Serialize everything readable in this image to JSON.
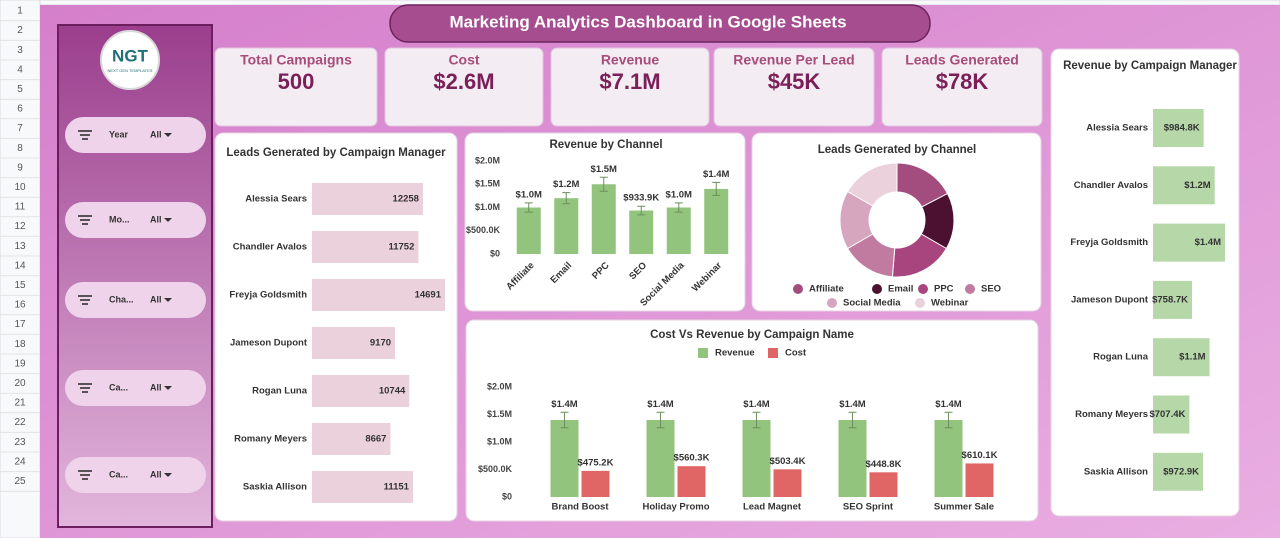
{
  "title": "Marketing Analytics Dashboard in Google Sheets",
  "row_numbers": [
    "1",
    "2",
    "3",
    "4",
    "5",
    "6",
    "7",
    "8",
    "9",
    "10",
    "11",
    "12",
    "13",
    "14",
    "15",
    "16",
    "17",
    "18",
    "19",
    "20",
    "21",
    "22",
    "23",
    "24",
    "25"
  ],
  "logo": {
    "text": "NGT",
    "tagline": "NEXT GEN TEMPLATES"
  },
  "filters": [
    {
      "label": "Year",
      "value": "All"
    },
    {
      "label": "Mo...",
      "value": "All"
    },
    {
      "label": "Cha...",
      "value": "All"
    },
    {
      "label": "Ca...",
      "value": "All"
    },
    {
      "label": "Ca...",
      "value": "All"
    }
  ],
  "kpis": [
    {
      "label": "Total Campaigns",
      "value": 500
    },
    {
      "label": "Cost",
      "value": "$2.6M"
    },
    {
      "label": "Revenue",
      "value": "$7.1M"
    },
    {
      "label": "Revenue Per Lead",
      "value": "$45K"
    },
    {
      "label": "Leads Generated",
      "value": "$78K"
    }
  ],
  "chart_data": [
    {
      "type": "hbar",
      "title": "Leads Generated by Campaign Manager",
      "categories": [
        "Alessia Sears",
        "Chandler Avalos",
        "Freyja Goldsmith",
        "Jameson Dupont",
        "Rogan Luna",
        "Romany Meyers",
        "Saskia Allison"
      ],
      "values": [
        12258,
        11752,
        14691,
        9170,
        10744,
        8667,
        11151
      ],
      "color": "#ead1dc"
    },
    {
      "type": "bar",
      "title": "Revenue by Channel",
      "categories": [
        "Affiliate",
        "Email",
        "PPC",
        "SEO",
        "Social Media",
        "Webinar"
      ],
      "values": [
        1000000,
        1200000,
        1500000,
        933900,
        1000000,
        1400000
      ],
      "value_labels": [
        "$1.0M",
        "$1.2M",
        "$1.5M",
        "$933.9K",
        "$1.0M",
        "$1.4M"
      ],
      "errors": [
        100000,
        120000,
        150000,
        93390,
        100000,
        140000
      ],
      "color": "#93c47d",
      "ylim": [
        0,
        2000000
      ],
      "yticks": [
        {
          "value": 0,
          "label": "$0"
        },
        {
          "value": 500000,
          "label": "$500.0K"
        },
        {
          "value": 1000000,
          "label": "$1.0M"
        },
        {
          "value": 1500000,
          "label": "$1.5M"
        },
        {
          "value": 2000000,
          "label": "$2.0M"
        }
      ]
    },
    {
      "type": "pie",
      "title": "Leads Generated by Channel",
      "donut": true,
      "categories": [
        "Affiliate",
        "Email",
        "PPC",
        "SEO",
        "Social Media",
        "Webinar"
      ],
      "values": [
        13500,
        12500,
        14000,
        12000,
        13000,
        13000
      ],
      "colors": [
        "#a24d7d",
        "#4c1130",
        "#a8457f",
        "#c27ba0",
        "#d5a6bd",
        "#ead1dc"
      ]
    },
    {
      "type": "bar",
      "title": "Cost Vs Revenue by Campaign Name",
      "legend": "top",
      "categories": [
        "Brand Boost",
        "Holiday Promo",
        "Lead Magnet",
        "SEO Sprint",
        "Summer Sale"
      ],
      "series": [
        {
          "name": "Revenue",
          "color": "#93c47d",
          "values": [
            1400000,
            1400000,
            1400000,
            1400000,
            1400000
          ],
          "value_labels": [
            "$1.4M",
            "$1.4M",
            "$1.4M",
            "$1.4M",
            "$1.4M"
          ],
          "errors": [
            140000,
            140000,
            140000,
            140000,
            140000
          ]
        },
        {
          "name": "Cost",
          "color": "#e06666",
          "values": [
            475200,
            560300,
            503400,
            448800,
            610100
          ],
          "value_labels": [
            "$475.2K",
            "$560.3K",
            "$503.4K",
            "$448.8K",
            "$610.1K"
          ]
        }
      ],
      "ylim": [
        0,
        2000000
      ],
      "yticks": [
        {
          "value": 0,
          "label": "$0"
        },
        {
          "value": 500000,
          "label": "$500.0K"
        },
        {
          "value": 1000000,
          "label": "$1.0M"
        },
        {
          "value": 1500000,
          "label": "$1.5M"
        },
        {
          "value": 2000000,
          "label": "$2.0M"
        }
      ]
    },
    {
      "type": "hbar",
      "title": "Revenue by Campaign Manager",
      "categories": [
        "Alessia Sears",
        "Chandler Avalos",
        "Freyja Goldsmith",
        "Jameson Dupont",
        "Rogan Luna",
        "Romany Meyers",
        "Saskia Allison"
      ],
      "values": [
        984800,
        1200000,
        1400000,
        758700,
        1100000,
        707400,
        972900
      ],
      "value_labels": [
        "$984.8K",
        "$1.2M",
        "$1.4M",
        "$758.7K",
        "$1.1M",
        "$707.4K",
        "$972.9K"
      ],
      "color": "#b6d7a8"
    }
  ]
}
